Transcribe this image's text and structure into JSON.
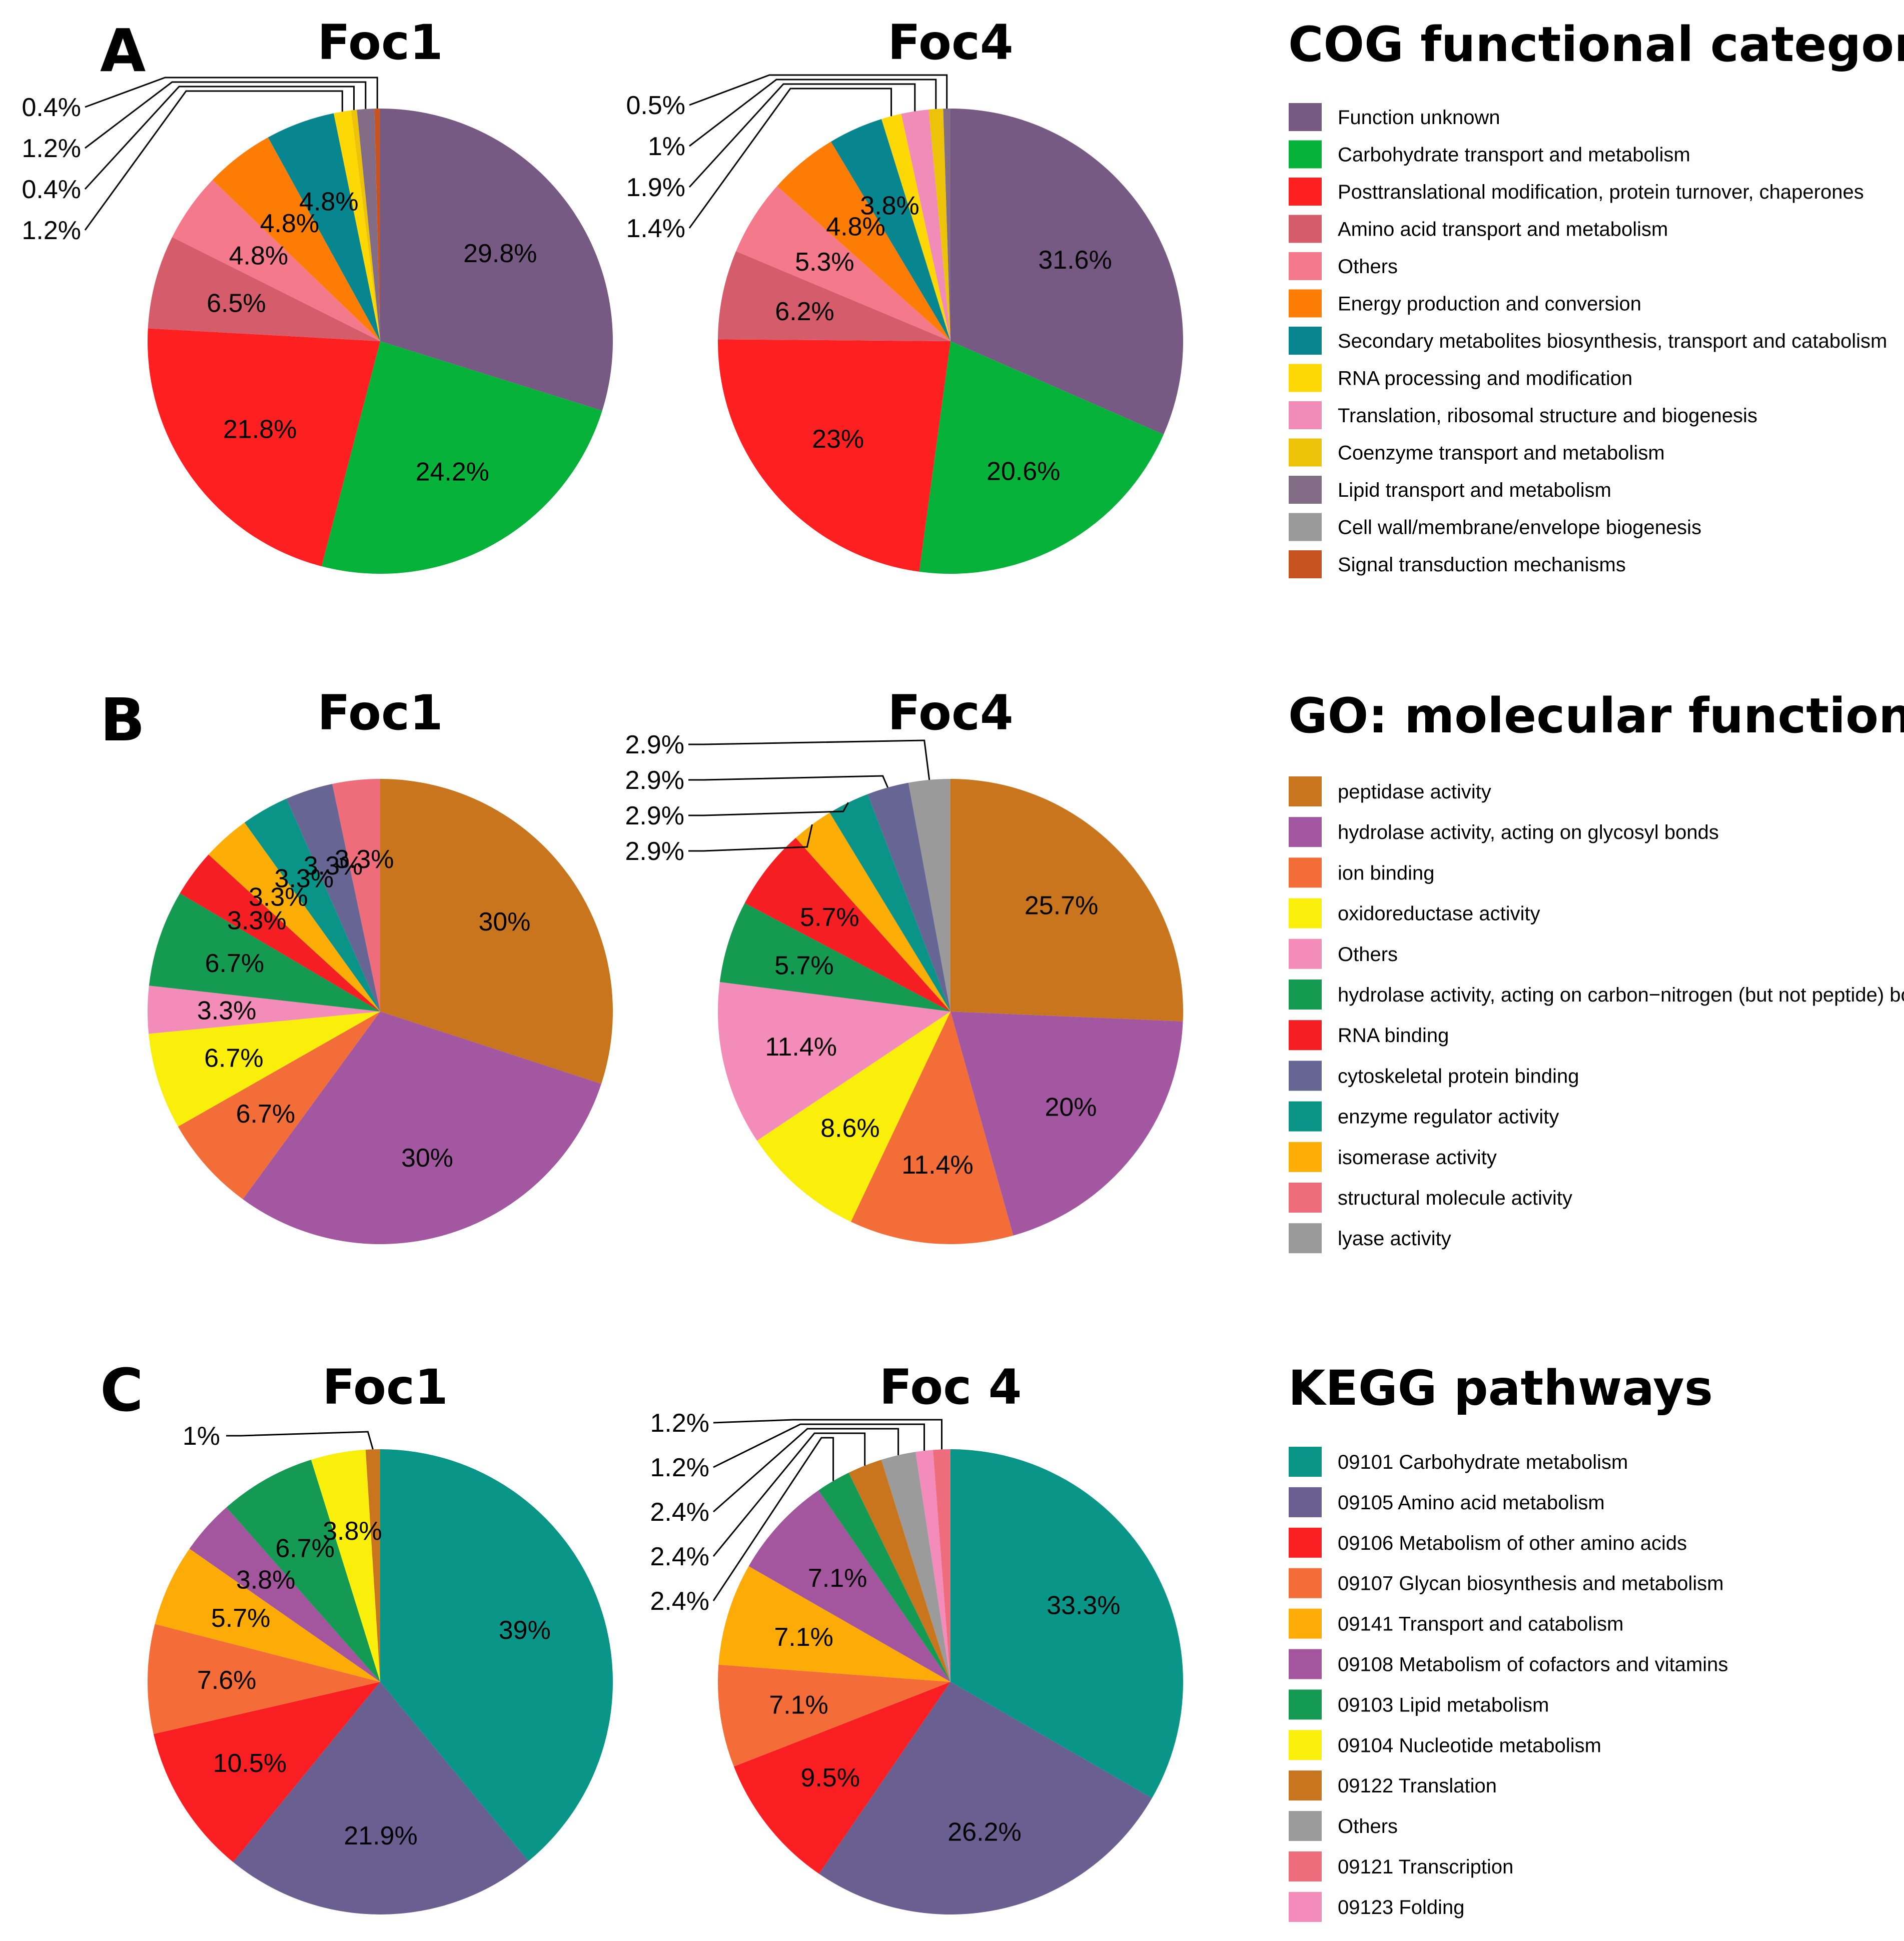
{
  "figure": {
    "panels": [
      {
        "letter": "A",
        "legend_title": "COG functional categories:",
        "legend": [
          {
            "label": "Function unknown",
            "color": "#765a84"
          },
          {
            "label": "Carbohydrate transport and metabolism",
            "color": "#06b23a"
          },
          {
            "label": "Posttranslational modification, protein turnover, chaperones",
            "color": "#fe1f20"
          },
          {
            "label": "Amino acid transport and metabolism",
            "color": "#d55c6a"
          },
          {
            "label": "Others",
            "color": "#f47a8b"
          },
          {
            "label": "Energy production and conversion",
            "color": "#fd7d04"
          },
          {
            "label": "Secondary metabolites biosynthesis, transport and catabolism",
            "color": "#088690"
          },
          {
            "label": "RNA processing and modification",
            "color": "#fed804"
          },
          {
            "label": "Translation, ribosomal structure and biogenesis",
            "color": "#f18cb9"
          },
          {
            "label": "Coenzyme transport and metabolism",
            "color": "#ecc309"
          },
          {
            "label": "Lipid transport and metabolism",
            "color": "#836c86"
          },
          {
            "label": "Cell wall/membrane/envelope biogenesis",
            "color": "#9a9a9a"
          },
          {
            "label": "Signal transduction mechanisms",
            "color": "#c75320"
          }
        ]
      },
      {
        "letter": "B",
        "legend_title": "GO: molecular function",
        "legend": [
          {
            "label": "peptidase activity",
            "color": "#c8751e"
          },
          {
            "label": "hydrolase activity, acting on glycosyl bonds",
            "color": "#a257a0"
          },
          {
            "label": "ion binding",
            "color": "#f36d39"
          },
          {
            "label": "oxidoreductase activity",
            "color": "#f9ef0a"
          },
          {
            "label": "Others",
            "color": "#f48cba"
          },
          {
            "label": "hydrolase activity, acting on carbon−nitrogen (but not peptide) bonds",
            "color": "#159a52"
          },
          {
            "label": "RNA binding",
            "color": "#f51e22"
          },
          {
            "label": "cytoskeletal protein binding",
            "color": "#676593"
          },
          {
            "label": "enzyme regulator activity",
            "color": "#0a9488"
          },
          {
            "label": "isomerase activity",
            "color": "#fdae06"
          },
          {
            "label": "structural molecule activity",
            "color": "#ef6c7b"
          },
          {
            "label": "lyase activity",
            "color": "#9a9a9a"
          }
        ]
      },
      {
        "letter": "C",
        "legend_title": "KEGG pathways",
        "legend": [
          {
            "label": "09101 Carbohydrate metabolism",
            "color": "#099688"
          },
          {
            "label": "09105 Amino acid metabolism",
            "color": "#695f91"
          },
          {
            "label": "09106 Metabolism of other amino acids",
            "color": "#f81e21"
          },
          {
            "label": "09107 Glycan biosynthesis and metabolism",
            "color": "#f46c38"
          },
          {
            "label": "09141 Transport and catabolism",
            "color": "#fdab07"
          },
          {
            "label": "09108 Metabolism of cofactors and vitamins",
            "color": "#a3569e"
          },
          {
            "label": "09103 Lipid metabolism",
            "color": "#149a52"
          },
          {
            "label": "09104 Nucleotide metabolism",
            "color": "#f9ef0b"
          },
          {
            "label": "09122 Translation",
            "color": "#c8751e"
          },
          {
            "label": "Others",
            "color": "#9b9b9b"
          },
          {
            "label": "09121 Transcription",
            "color": "#ee6c7b"
          },
          {
            "label": "09123 Folding",
            "color": "#f38cba"
          }
        ]
      }
    ]
  },
  "chart_data": [
    {
      "type": "pie",
      "panel": "A",
      "title": "Foc1",
      "slices": [
        {
          "category": "Function unknown",
          "value": 29.8,
          "label": "29.8%"
        },
        {
          "category": "Carbohydrate transport and metabolism",
          "value": 24.2,
          "label": "24.2%"
        },
        {
          "category": "Posttranslational modification, protein turnover, chaperones",
          "value": 21.8,
          "label": "21.8%"
        },
        {
          "category": "Amino acid transport and metabolism",
          "value": 6.5,
          "label": "6.5%"
        },
        {
          "category": "Others",
          "value": 4.8,
          "label": "4.8%"
        },
        {
          "category": "Energy production and conversion",
          "value": 4.8,
          "label": "4.8%"
        },
        {
          "category": "Secondary metabolites biosynthesis, transport and catabolism",
          "value": 4.8,
          "label": "4.8%"
        },
        {
          "category": "RNA processing and modification",
          "value": 1.2,
          "label": "1.2%"
        },
        {
          "category": "Coenzyme transport and metabolism",
          "value": 0.4,
          "label": "0.4%"
        },
        {
          "category": "Lipid transport and metabolism",
          "value": 1.2,
          "label": "1.2%"
        },
        {
          "category": "Signal transduction mechanisms",
          "value": 0.4,
          "label": "0.4%"
        }
      ]
    },
    {
      "type": "pie",
      "panel": "A",
      "title": "Foc4",
      "slices": [
        {
          "category": "Function unknown",
          "value": 31.6,
          "label": "31.6%"
        },
        {
          "category": "Carbohydrate transport and metabolism",
          "value": 20.6,
          "label": "20.6%"
        },
        {
          "category": "Posttranslational modification, protein turnover, chaperones",
          "value": 23.0,
          "label": "23%"
        },
        {
          "category": "Amino acid transport and metabolism",
          "value": 6.2,
          "label": "6.2%"
        },
        {
          "category": "Others",
          "value": 5.3,
          "label": "5.3%"
        },
        {
          "category": "Energy production and conversion",
          "value": 4.8,
          "label": "4.8%"
        },
        {
          "category": "Secondary metabolites biosynthesis, transport and catabolism",
          "value": 3.8,
          "label": "3.8%"
        },
        {
          "category": "RNA processing and modification",
          "value": 1.4,
          "label": "1.4%"
        },
        {
          "category": "Translation, ribosomal structure and biogenesis",
          "value": 1.9,
          "label": "1.9%"
        },
        {
          "category": "Coenzyme transport and metabolism",
          "value": 1.0,
          "label": "1%"
        },
        {
          "category": "Lipid transport and metabolism",
          "value": 0.5,
          "label": "0.5%"
        }
      ]
    },
    {
      "type": "pie",
      "panel": "B",
      "title": "Foc1",
      "slices": [
        {
          "category": "peptidase activity",
          "value": 30,
          "label": "30%"
        },
        {
          "category": "hydrolase activity, acting on glycosyl bonds",
          "value": 30,
          "label": "30%"
        },
        {
          "category": "ion binding",
          "value": 6.7,
          "label": "6.7%"
        },
        {
          "category": "oxidoreductase activity",
          "value": 6.7,
          "label": "6.7%"
        },
        {
          "category": "Others",
          "value": 3.3,
          "label": "3.3%"
        },
        {
          "category": "hydrolase activity, acting on carbon−nitrogen (but not peptide) bonds",
          "value": 6.7,
          "label": "6.7%"
        },
        {
          "category": "RNA binding",
          "value": 3.3,
          "label": "3.3%"
        },
        {
          "category": "isomerase activity",
          "value": 3.3,
          "label": "3.3%"
        },
        {
          "category": "enzyme regulator activity",
          "value": 3.3,
          "label": "3.3%"
        },
        {
          "category": "cytoskeletal protein binding",
          "value": 3.3,
          "label": "3.3%"
        },
        {
          "category": "structural molecule activity",
          "value": 3.3,
          "label": "3.3%"
        }
      ]
    },
    {
      "type": "pie",
      "panel": "B",
      "title": "Foc4",
      "slices": [
        {
          "category": "peptidase activity",
          "value": 25.7,
          "label": "25.7%"
        },
        {
          "category": "hydrolase activity, acting on glycosyl bonds",
          "value": 20,
          "label": "20%"
        },
        {
          "category": "ion binding",
          "value": 11.4,
          "label": "11.4%"
        },
        {
          "category": "oxidoreductase activity",
          "value": 8.6,
          "label": "8.6%"
        },
        {
          "category": "Others",
          "value": 11.4,
          "label": "11.4%"
        },
        {
          "category": "hydrolase activity, acting on carbon−nitrogen (but not peptide) bonds",
          "value": 5.7,
          "label": "5.7%"
        },
        {
          "category": "RNA binding",
          "value": 5.7,
          "label": "5.7%"
        },
        {
          "category": "isomerase activity",
          "value": 2.9,
          "label": "2.9%"
        },
        {
          "category": "enzyme regulator activity",
          "value": 2.9,
          "label": "2.9%"
        },
        {
          "category": "cytoskeletal protein binding",
          "value": 2.9,
          "label": "2.9%"
        },
        {
          "category": "lyase activity",
          "value": 2.9,
          "label": "2.9%"
        }
      ]
    },
    {
      "type": "pie",
      "panel": "C",
      "title": "Foc1",
      "slices": [
        {
          "category": "09101 Carbohydrate metabolism",
          "value": 39,
          "label": "39%"
        },
        {
          "category": "09105 Amino acid metabolism",
          "value": 21.9,
          "label": "21.9%"
        },
        {
          "category": "09106 Metabolism of other amino acids",
          "value": 10.5,
          "label": "10.5%"
        },
        {
          "category": "09107 Glycan biosynthesis and metabolism",
          "value": 7.6,
          "label": "7.6%"
        },
        {
          "category": "09141 Transport and catabolism",
          "value": 5.7,
          "label": "5.7%"
        },
        {
          "category": "09108 Metabolism of cofactors and vitamins",
          "value": 3.8,
          "label": "3.8%"
        },
        {
          "category": "09103 Lipid metabolism",
          "value": 6.7,
          "label": "6.7%"
        },
        {
          "category": "09104 Nucleotide metabolism",
          "value": 3.8,
          "label": "3.8%"
        },
        {
          "category": "09122 Translation",
          "value": 1,
          "label": "1%"
        }
      ]
    },
    {
      "type": "pie",
      "panel": "C",
      "title": "Foc 4",
      "slices": [
        {
          "category": "09101 Carbohydrate metabolism",
          "value": 33.3,
          "label": "33.3%"
        },
        {
          "category": "09105 Amino acid metabolism",
          "value": 26.2,
          "label": "26.2%"
        },
        {
          "category": "09106 Metabolism of other amino acids",
          "value": 9.5,
          "label": "9.5%"
        },
        {
          "category": "09107 Glycan biosynthesis and metabolism",
          "value": 7.1,
          "label": "7.1%"
        },
        {
          "category": "09141 Transport and catabolism",
          "value": 7.1,
          "label": "7.1%"
        },
        {
          "category": "09108 Metabolism of cofactors and vitamins",
          "value": 7.1,
          "label": "7.1%"
        },
        {
          "category": "09103 Lipid metabolism",
          "value": 2.4,
          "label": "2.4%"
        },
        {
          "category": "09122 Translation",
          "value": 2.4,
          "label": "2.4%"
        },
        {
          "category": "Others",
          "value": 2.4,
          "label": "2.4%"
        },
        {
          "category": "09123 Folding",
          "value": 1.2,
          "label": "1.2%"
        },
        {
          "category": "09121 Transcription",
          "value": 1.2,
          "label": "1.2%"
        }
      ]
    }
  ]
}
